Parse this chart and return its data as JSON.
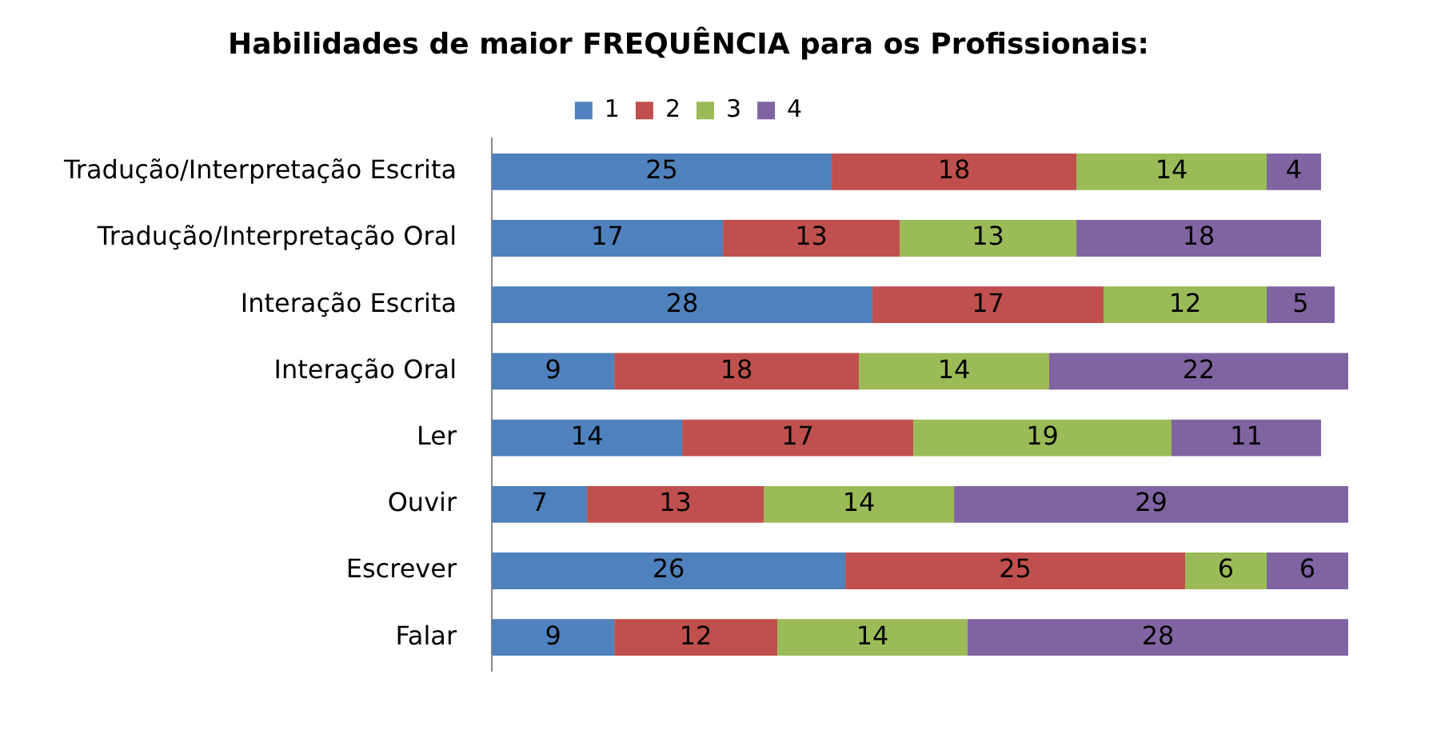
{
  "chart_data": {
    "type": "bar",
    "orientation": "horizontal",
    "stacked": true,
    "title": "Habilidades de maior FREQUÊNCIA para os Profissionais:",
    "categories": [
      "Tradução/Interpretação Escrita",
      "Tradução/Interpretação Oral",
      "Interação Escrita",
      "Interação Oral",
      "Ler",
      "Ouvir",
      "Escrever",
      "Falar"
    ],
    "series": [
      {
        "name": "1",
        "color": "#4f81bd",
        "values": [
          25,
          17,
          28,
          9,
          14,
          7,
          26,
          9
        ]
      },
      {
        "name": "2",
        "color": "#c0504d",
        "values": [
          18,
          13,
          17,
          18,
          17,
          13,
          25,
          12
        ]
      },
      {
        "name": "3",
        "color": "#9bbb59",
        "values": [
          14,
          13,
          12,
          14,
          19,
          14,
          6,
          14
        ]
      },
      {
        "name": "4",
        "color": "#8064a2",
        "values": [
          4,
          18,
          5,
          22,
          11,
          29,
          6,
          28
        ]
      }
    ],
    "data_labels": true,
    "legend": "top"
  }
}
